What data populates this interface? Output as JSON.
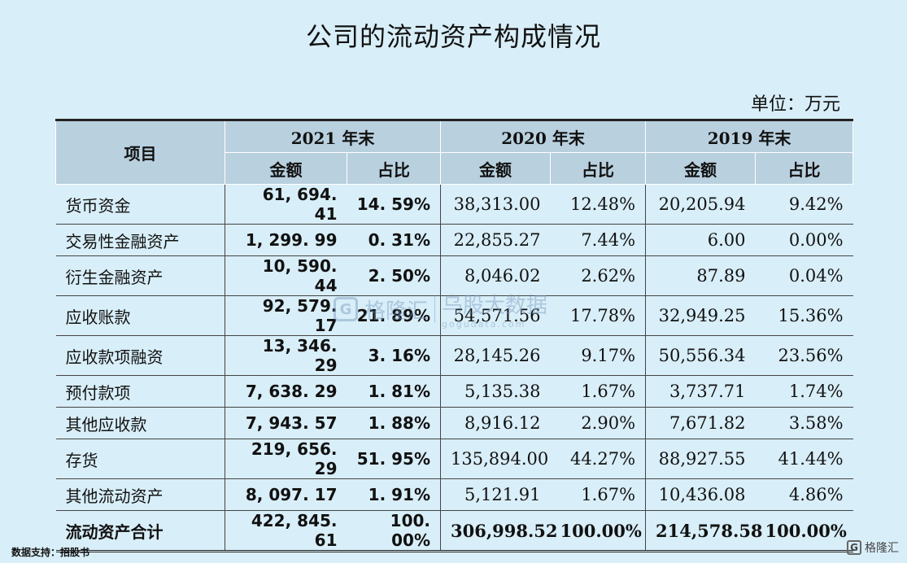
{
  "title": "公司的流动资产构成情况",
  "unit": "单位：万元",
  "header": {
    "item": "项目",
    "years": [
      "2021 年末",
      "2020 年末",
      "2019 年末"
    ],
    "amount": "金额",
    "ratio": "占比"
  },
  "rows": [
    {
      "name": "货币资金",
      "c": [
        "61, 694. 41",
        "14. 59%",
        "38,313.00",
        "12.48%",
        "20,205.94",
        "9.42%"
      ]
    },
    {
      "name": "交易性金融资产",
      "c": [
        "1, 299. 99",
        "0. 31%",
        "22,855.27",
        "7.44%",
        "6.00",
        "0.00%"
      ]
    },
    {
      "name": "衍生金融资产",
      "c": [
        "10, 590. 44",
        "2. 50%",
        "8,046.02",
        "2.62%",
        "87.89",
        "0.04%"
      ]
    },
    {
      "name": "应收账款",
      "c": [
        "92, 579. 17",
        "21. 89%",
        "54,571.56",
        "17.78%",
        "32,949.25",
        "15.36%"
      ]
    },
    {
      "name": "应收款项融资",
      "c": [
        "13, 346. 29",
        "3. 16%",
        "28,145.26",
        "9.17%",
        "50,556.34",
        "23.56%"
      ]
    },
    {
      "name": "预付款项",
      "c": [
        "7, 638. 29",
        "1. 81%",
        "5,135.38",
        "1.67%",
        "3,737.71",
        "1.74%"
      ]
    },
    {
      "name": "其他应收款",
      "c": [
        "7, 943. 57",
        "1. 88%",
        "8,916.12",
        "2.90%",
        "7,671.82",
        "3.58%"
      ]
    },
    {
      "name": "存货",
      "c": [
        "219, 656. 29",
        "51. 95%",
        "135,894.00",
        "44.27%",
        "88,927.55",
        "41.44%"
      ]
    },
    {
      "name": "其他流动资产",
      "c": [
        "8, 097. 17",
        "1. 91%",
        "5,121.91",
        "1.67%",
        "10,436.08",
        "4.86%"
      ]
    },
    {
      "name": "流动资产合计",
      "c": [
        "422, 845. 61",
        "100. 00%",
        "306,998.52",
        "100.00%",
        "214,578.58",
        "100.00%"
      ]
    }
  ],
  "source": "数据支持：招股书",
  "logo": {
    "mark": "G",
    "text": "格隆汇"
  },
  "watermark": {
    "mark": "G",
    "brand": "格隆汇",
    "site": "乌股大数据",
    "url": "gogudata.com"
  }
}
